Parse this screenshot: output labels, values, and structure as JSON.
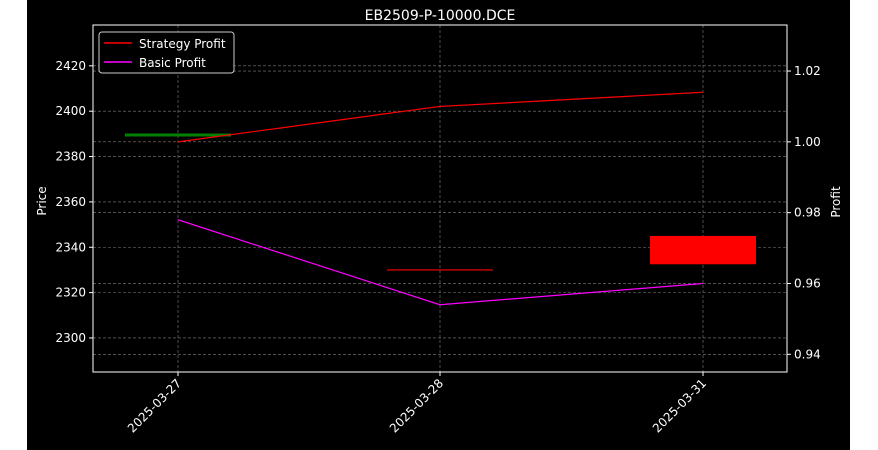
{
  "chart_data": {
    "type": "line",
    "title": "EB2509-P-10000.DCE",
    "xlabel": "",
    "ylabel": "Price",
    "ylabel_right": "Profit",
    "categories": [
      "2025-03-27",
      "2025-03-28",
      "2025-03-31"
    ],
    "ylim": [
      2285,
      2438
    ],
    "ylim_right": [
      0.935,
      1.033
    ],
    "yticks": [
      2300,
      2320,
      2340,
      2360,
      2380,
      2400,
      2420
    ],
    "yticks_right": [
      0.94,
      0.96,
      0.98,
      1.0,
      1.02
    ],
    "ytick_labels_right": [
      "0.94",
      "0.96",
      "0.98",
      "1.00",
      "1.02"
    ],
    "grid": true,
    "legend_position": "top-left",
    "candles": [
      {
        "x": "2025-03-27",
        "open": 2389.5,
        "close": 2389.5,
        "color": "#008000"
      },
      {
        "x": "2025-03-28",
        "open": 2330,
        "close": 2330,
        "color": "#ff0000"
      },
      {
        "x": "2025-03-31",
        "open": 2345,
        "close": 2332.5,
        "color": "#ff0000"
      }
    ],
    "series": [
      {
        "name": "Strategy Profit",
        "axis": "right",
        "color": "#ff0000",
        "values": [
          1.0,
          1.01,
          1.014
        ]
      },
      {
        "name": "Basic Profit",
        "axis": "right",
        "color": "#ff00ff",
        "values": [
          0.978,
          0.954,
          0.96
        ]
      }
    ]
  },
  "colors": {
    "background": "#000000",
    "figure_border": "#ffffff",
    "axis": "#ffffff",
    "grid": "#808080"
  }
}
